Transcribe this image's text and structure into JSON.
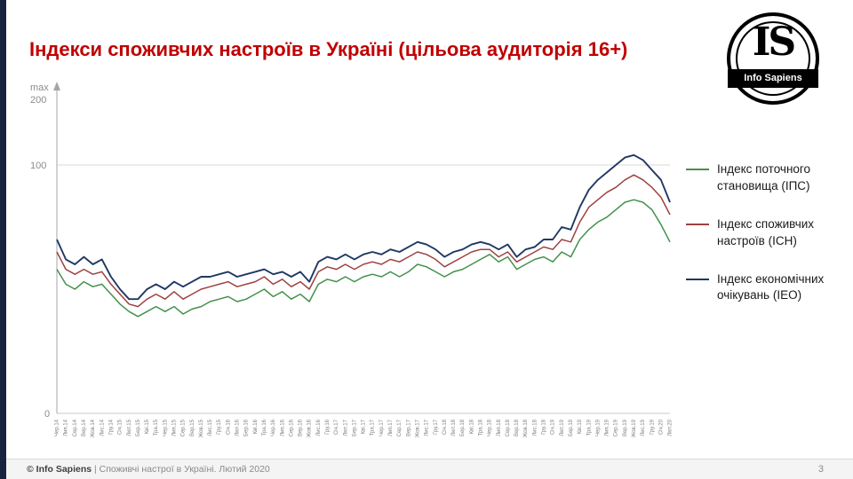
{
  "slide": {
    "title": "Індекси споживчих настроїв в Україні (цільова аудиторія 16+)",
    "page_number": "3",
    "footer_brand": "© Info Sapiens",
    "footer_rest": " | Споживчі настрої в Україні. Лютий 2020"
  },
  "logo": {
    "monogram": "IS",
    "name": "Info Sapiens"
  },
  "axis": {
    "max_label": "max",
    "top_value": "200",
    "mid_value": "100",
    "zero_value": "0"
  },
  "legend": [
    {
      "label": "Індекс поточного становища (ІПС)",
      "color": "#43914b"
    },
    {
      "label": "Індекс споживчих настроїв (ІСН)",
      "color": "#9e4141"
    },
    {
      "label": "Індекс економічних очікувань (ІЕО)",
      "color": "#1f3864"
    }
  ],
  "chart_data": {
    "type": "line",
    "title": "Індекси споживчих настроїв в Україні (цільова аудиторія 16+)",
    "xlabel": "",
    "ylabel": "",
    "ylim": [
      0,
      200
    ],
    "yticks": [
      0,
      100,
      200
    ],
    "grid": "horizontal-at-100",
    "legend_position": "right",
    "categories": [
      "Чер.14",
      "Лип.14",
      "Сер.14",
      "Вер.14",
      "Жов.14",
      "Лис.14",
      "Гру.14",
      "Січ.15",
      "Лют.15",
      "Бер.15",
      "Кві.15",
      "Тра.15",
      "Чер.15",
      "Лип.15",
      "Сер.15",
      "Вер.15",
      "Жов.15",
      "Лис.15",
      "Гру.15",
      "Січ.16",
      "Лют.16",
      "Бер.16",
      "Кві.16",
      "Тра.16",
      "Чер.16",
      "Лип.16",
      "Сер.16",
      "Вер.16",
      "Жов.16",
      "Лис.16",
      "Гру.16",
      "Січ.17",
      "Лют.17",
      "Бер.17",
      "Кві.17",
      "Тра.17",
      "Чер.17",
      "Лип.17",
      "Сер.17",
      "Вер.17",
      "Жов.17",
      "Лис.17",
      "Гру.17",
      "Січ.18",
      "Лют.18",
      "Бер.18",
      "Кві.18",
      "Тра.18",
      "Чер.18",
      "Лип.18",
      "Сер.18",
      "Вер.18",
      "Жов.18",
      "Лис.18",
      "Гру.18",
      "Січ.19",
      "Лют.19",
      "Бер.19",
      "Кві.19",
      "Тра.19",
      "Чер.19",
      "Лип.19",
      "Сер.19",
      "Вер.19",
      "Жов.19",
      "Лис.19",
      "Гру.19",
      "Січ.20",
      "Лют.20"
    ],
    "series": [
      {
        "name": "Індекс поточного становища (ІПС)",
        "color": "#43914b",
        "values": [
          58,
          52,
          50,
          53,
          51,
          52,
          48,
          44,
          41,
          39,
          41,
          43,
          41,
          43,
          40,
          42,
          43,
          45,
          46,
          47,
          45,
          46,
          48,
          50,
          47,
          49,
          46,
          48,
          45,
          52,
          54,
          53,
          55,
          53,
          55,
          56,
          55,
          57,
          55,
          57,
          60,
          59,
          57,
          55,
          57,
          58,
          60,
          62,
          64,
          61,
          63,
          58,
          60,
          62,
          63,
          61,
          65,
          63,
          70,
          74,
          77,
          79,
          82,
          85,
          86,
          85,
          82,
          76,
          69
        ]
      },
      {
        "name": "Індекс споживчих настроїв (ІСН)",
        "color": "#9e4141",
        "values": [
          65,
          58,
          56,
          58,
          56,
          57,
          52,
          48,
          44,
          43,
          46,
          48,
          46,
          49,
          46,
          48,
          50,
          51,
          52,
          53,
          51,
          52,
          53,
          55,
          52,
          54,
          51,
          53,
          50,
          57,
          59,
          58,
          60,
          58,
          60,
          61,
          60,
          62,
          61,
          63,
          65,
          64,
          62,
          59,
          61,
          63,
          65,
          66,
          66,
          63,
          65,
          61,
          63,
          65,
          67,
          66,
          70,
          69,
          77,
          83,
          86,
          89,
          91,
          94,
          96,
          94,
          91,
          87,
          80
        ]
      },
      {
        "name": "Індекс економічних очікувань (ІЕО)",
        "color": "#1f3864",
        "values": [
          70,
          62,
          60,
          63,
          60,
          62,
          55,
          50,
          46,
          46,
          50,
          52,
          50,
          53,
          51,
          53,
          55,
          55,
          56,
          57,
          55,
          56,
          57,
          58,
          56,
          57,
          55,
          57,
          53,
          61,
          63,
          62,
          64,
          62,
          64,
          65,
          64,
          66,
          65,
          67,
          69,
          68,
          66,
          63,
          65,
          66,
          68,
          69,
          68,
          66,
          68,
          63,
          66,
          67,
          70,
          70,
          75,
          74,
          83,
          90,
          94,
          97,
          100,
          103,
          104,
          102,
          98,
          94,
          85
        ]
      }
    ]
  }
}
